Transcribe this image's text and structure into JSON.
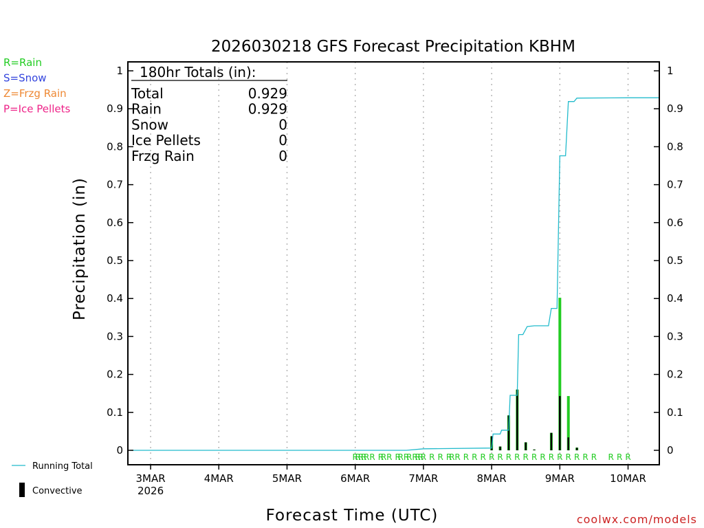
{
  "chart_data": {
    "type": "bar",
    "title": "2026030218 GFS Forecast Precipitation KBHM",
    "ylabel": "Precipitation (in)",
    "xlabel": "Forecast Time (UTC)",
    "ylim": [
      0,
      1
    ],
    "yticks": [
      0,
      0.1,
      0.2,
      0.3,
      0.4,
      0.5,
      0.6,
      0.7,
      0.8,
      0.9,
      1
    ],
    "ytick_labels": [
      "0",
      "0.1",
      "0.2",
      "0.3",
      "0.4",
      "0.5",
      "0.6",
      "0.7",
      "0.8",
      "0.9",
      "1"
    ],
    "x_range_hours": [
      -2,
      185
    ],
    "x_ticks": [
      {
        "hour": 6,
        "label": "3MAR",
        "sublabel": "2026"
      },
      {
        "hour": 30,
        "label": "4MAR"
      },
      {
        "hour": 54,
        "label": "5MAR"
      },
      {
        "hour": 78,
        "label": "6MAR"
      },
      {
        "hour": 102,
        "label": "7MAR"
      },
      {
        "hour": 126,
        "label": "8MAR"
      },
      {
        "hour": 150,
        "label": "9MAR"
      },
      {
        "hour": 174,
        "label": "10MAR"
      }
    ],
    "type_legend": [
      {
        "label": "R=Rain",
        "color": "#22cc22"
      },
      {
        "label": "S=Snow",
        "color": "#3344dd"
      },
      {
        "label": "Z=Frzg Rain",
        "color": "#ee8833"
      },
      {
        "label": "P=Ice Pellets",
        "color": "#ee2288"
      }
    ],
    "series_legend": [
      {
        "label": "Running Total",
        "color": "#22bbcc"
      },
      {
        "label": "Convective",
        "color": "#000000"
      }
    ],
    "totals": {
      "header": "180hr Totals (in):",
      "rows": [
        {
          "label": "Total",
          "value": "0.929"
        },
        {
          "label": "Rain",
          "value": "0.929"
        },
        {
          "label": "Snow",
          "value": "0"
        },
        {
          "label": "Ice Pellets",
          "value": "0"
        },
        {
          "label": "Frzg Rain",
          "value": "0"
        }
      ]
    },
    "bar_interval_hours": 3,
    "precip_bars": [
      {
        "hour": 126,
        "total": 0.037,
        "convective": 0.037
      },
      {
        "hour": 129,
        "total": 0.01,
        "convective": 0.01
      },
      {
        "hour": 132,
        "total": 0.092,
        "convective": 0.092
      },
      {
        "hour": 135,
        "total": 0.16,
        "convective": 0.16
      },
      {
        "hour": 138,
        "total": 0.021,
        "convective": 0.021
      },
      {
        "hour": 141,
        "total": 0.002,
        "convective": 0.002
      },
      {
        "hour": 147,
        "total": 0.046,
        "convective": 0.046
      },
      {
        "hour": 150,
        "total": 0.402,
        "convective": 0.143
      },
      {
        "hour": 153,
        "total": 0.143,
        "convective": 0.034
      },
      {
        "hour": 156,
        "total": 0.007,
        "convective": 0.007
      }
    ],
    "running_total": [
      {
        "hour": -1,
        "value": 0
      },
      {
        "hour": 96,
        "value": 0
      },
      {
        "hour": 102,
        "value": 0.004
      },
      {
        "hour": 126,
        "value": 0.006
      },
      {
        "hour": 126.5,
        "value": 0.043
      },
      {
        "hour": 129,
        "value": 0.043
      },
      {
        "hour": 129.5,
        "value": 0.053
      },
      {
        "hour": 132,
        "value": 0.053
      },
      {
        "hour": 132.5,
        "value": 0.145
      },
      {
        "hour": 135,
        "value": 0.145
      },
      {
        "hour": 135.5,
        "value": 0.305
      },
      {
        "hour": 137,
        "value": 0.305
      },
      {
        "hour": 138.5,
        "value": 0.326
      },
      {
        "hour": 141,
        "value": 0.328
      },
      {
        "hour": 146,
        "value": 0.328
      },
      {
        "hour": 147,
        "value": 0.374
      },
      {
        "hour": 149,
        "value": 0.374
      },
      {
        "hour": 150,
        "value": 0.776
      },
      {
        "hour": 152,
        "value": 0.776
      },
      {
        "hour": 153,
        "value": 0.919
      },
      {
        "hour": 155,
        "value": 0.919
      },
      {
        "hour": 156,
        "value": 0.928
      },
      {
        "hour": 174,
        "value": 0.929
      },
      {
        "hour": 185,
        "value": 0.929
      }
    ],
    "type_marks": [
      {
        "hour": 78,
        "label": "R"
      },
      {
        "hour": 79,
        "label": "R"
      },
      {
        "hour": 80,
        "label": "R"
      },
      {
        "hour": 81,
        "label": "R"
      },
      {
        "hour": 82,
        "label": "R"
      },
      {
        "hour": 84,
        "label": "R"
      },
      {
        "hour": 87,
        "label": "R"
      },
      {
        "hour": 88,
        "label": "R"
      },
      {
        "hour": 90,
        "label": "R"
      },
      {
        "hour": 93,
        "label": "R"
      },
      {
        "hour": 94,
        "label": "R"
      },
      {
        "hour": 96,
        "label": "R"
      },
      {
        "hour": 97,
        "label": "R"
      },
      {
        "hour": 99,
        "label": "R"
      },
      {
        "hour": 100,
        "label": "R"
      },
      {
        "hour": 101,
        "label": "R"
      },
      {
        "hour": 102,
        "label": "R"
      },
      {
        "hour": 105,
        "label": "R"
      },
      {
        "hour": 108,
        "label": "R"
      },
      {
        "hour": 111,
        "label": "R"
      },
      {
        "hour": 112,
        "label": "R"
      },
      {
        "hour": 114,
        "label": "R"
      },
      {
        "hour": 117,
        "label": "R"
      },
      {
        "hour": 120,
        "label": "R"
      },
      {
        "hour": 123,
        "label": "R"
      },
      {
        "hour": 126,
        "label": "R"
      },
      {
        "hour": 129,
        "label": "R"
      },
      {
        "hour": 132,
        "label": "R"
      },
      {
        "hour": 135,
        "label": "R"
      },
      {
        "hour": 138,
        "label": "R"
      },
      {
        "hour": 141,
        "label": "R"
      },
      {
        "hour": 144,
        "label": "R"
      },
      {
        "hour": 147,
        "label": "R"
      },
      {
        "hour": 150,
        "label": "R"
      },
      {
        "hour": 153,
        "label": "R"
      },
      {
        "hour": 156,
        "label": "R"
      },
      {
        "hour": 159,
        "label": "R"
      },
      {
        "hour": 162,
        "label": "R"
      },
      {
        "hour": 168,
        "label": "R"
      },
      {
        "hour": 171,
        "label": "R"
      },
      {
        "hour": 174,
        "label": "R"
      }
    ],
    "colors": {
      "rain": "#22cc22",
      "convective": "#000000",
      "running_total": "#22bbcc",
      "grid": "#aaaaaa"
    }
  },
  "footer": {
    "site": "coolwx.com/models"
  }
}
